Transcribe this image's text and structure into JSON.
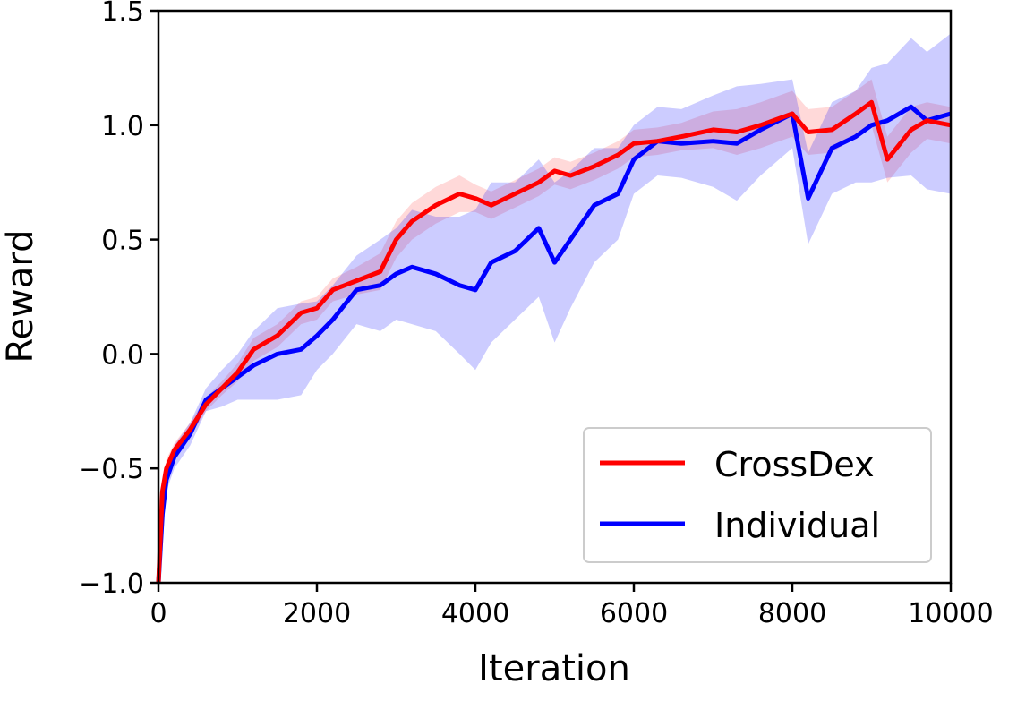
{
  "chart_data": {
    "type": "line",
    "title": "",
    "xlabel": "Iteration",
    "ylabel": "Reward",
    "xlim": [
      0,
      10000
    ],
    "ylim": [
      -1.0,
      1.5
    ],
    "xticks": [
      0,
      2000,
      4000,
      6000,
      8000,
      10000
    ],
    "xtick_labels": [
      "0",
      "2000",
      "4000",
      "6000",
      "8000",
      "10000"
    ],
    "yticks": [
      -1.0,
      -0.5,
      0.0,
      0.5,
      1.0,
      1.5
    ],
    "ytick_labels": [
      "−1.0",
      "−0.5",
      "0.0",
      "0.5",
      "1.0",
      "1.5"
    ],
    "grid": false,
    "legend_position": "bottom-right",
    "x": [
      0,
      50,
      100,
      200,
      400,
      600,
      800,
      1000,
      1200,
      1500,
      1800,
      2000,
      2200,
      2500,
      2800,
      3000,
      3200,
      3500,
      3800,
      4000,
      4200,
      4500,
      4800,
      5000,
      5200,
      5500,
      5800,
      6000,
      6300,
      6600,
      7000,
      7300,
      7600,
      8000,
      8200,
      8500,
      8800,
      9000,
      9200,
      9500,
      9700,
      10000
    ],
    "series": [
      {
        "name": "CrossDex",
        "color": "#ff0000",
        "values": [
          -1.0,
          -0.6,
          -0.5,
          -0.42,
          -0.33,
          -0.22,
          -0.15,
          -0.08,
          0.02,
          0.08,
          0.18,
          0.2,
          0.28,
          0.32,
          0.36,
          0.5,
          0.58,
          0.65,
          0.7,
          0.68,
          0.65,
          0.7,
          0.75,
          0.8,
          0.78,
          0.82,
          0.87,
          0.92,
          0.93,
          0.95,
          0.98,
          0.97,
          1.0,
          1.05,
          0.97,
          0.98,
          1.05,
          1.1,
          0.85,
          0.98,
          1.02,
          1.0
        ],
        "spread": [
          0,
          0.05,
          0.04,
          0.03,
          0.03,
          0.03,
          0.03,
          0.04,
          0.05,
          0.05,
          0.05,
          0.05,
          0.05,
          0.06,
          0.08,
          0.08,
          0.08,
          0.08,
          0.08,
          0.06,
          0.06,
          0.06,
          0.06,
          0.06,
          0.06,
          0.06,
          0.06,
          0.06,
          0.06,
          0.06,
          0.08,
          0.1,
          0.1,
          0.1,
          0.1,
          0.1,
          0.1,
          0.1,
          0.1,
          0.1,
          0.08,
          0.08
        ]
      },
      {
        "name": "Individual",
        "color": "#0000ff",
        "values": [
          -1.0,
          -0.7,
          -0.55,
          -0.45,
          -0.35,
          -0.2,
          -0.15,
          -0.1,
          -0.05,
          0.0,
          0.02,
          0.08,
          0.15,
          0.28,
          0.3,
          0.35,
          0.38,
          0.35,
          0.3,
          0.28,
          0.4,
          0.45,
          0.55,
          0.4,
          0.5,
          0.65,
          0.7,
          0.85,
          0.93,
          0.92,
          0.93,
          0.92,
          0.98,
          1.05,
          0.68,
          0.9,
          0.95,
          1.0,
          1.02,
          1.08,
          1.02,
          1.05
        ],
        "spread": [
          0,
          0.05,
          0.05,
          0.05,
          0.05,
          0.05,
          0.08,
          0.1,
          0.15,
          0.2,
          0.2,
          0.15,
          0.15,
          0.15,
          0.2,
          0.2,
          0.25,
          0.25,
          0.3,
          0.35,
          0.35,
          0.3,
          0.3,
          0.35,
          0.3,
          0.25,
          0.2,
          0.15,
          0.15,
          0.15,
          0.2,
          0.25,
          0.2,
          0.15,
          0.2,
          0.2,
          0.2,
          0.25,
          0.25,
          0.3,
          0.3,
          0.35
        ]
      }
    ]
  }
}
